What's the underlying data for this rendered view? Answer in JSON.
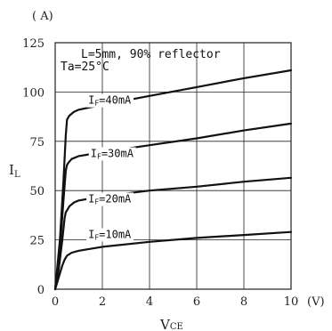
{
  "chart_data": {
    "type": "line",
    "title": "",
    "xlabel_main": "V",
    "xlabel_sub": "CE",
    "ylabel_main": "I",
    "ylabel_sub": "L",
    "x_unit": "(V)",
    "y_unit": "( A)",
    "xlim": [
      0,
      10
    ],
    "ylim": [
      0,
      125
    ],
    "x_ticks": [
      "0",
      "2",
      "4",
      "6",
      "8",
      "10"
    ],
    "y_ticks": [
      "0",
      "25",
      "50",
      "75",
      "100",
      "125"
    ],
    "x_tick_values": [
      0,
      2,
      4,
      6,
      8,
      10
    ],
    "y_tick_values": [
      0,
      25,
      50,
      75,
      100,
      125
    ],
    "grid": true,
    "annotations": [
      "L=5mm, 90% reflector",
      "Ta=25°C"
    ],
    "series": [
      {
        "name": "IF=10mA",
        "label_main": "I",
        "label_sub": "F",
        "label_rest": "=10mA",
        "label_anchor": [
          1.4,
          26
        ],
        "x": [
          0,
          0.1,
          0.2,
          0.3,
          0.4,
          0.5,
          0.7,
          1.0,
          2.0,
          4.0,
          6.0,
          8.0,
          10.0
        ],
        "y": [
          0,
          4,
          8,
          12,
          15,
          17,
          18.5,
          19.5,
          21.5,
          24,
          26,
          27.5,
          29
        ]
      },
      {
        "name": "IF=20mA",
        "label_main": "I",
        "label_sub": "F",
        "label_rest": "=20mA",
        "label_anchor": [
          1.4,
          44
        ],
        "x": [
          0,
          0.15,
          0.3,
          0.4,
          0.45,
          0.5,
          0.6,
          0.8,
          1.0,
          2.0,
          4.0,
          6.0,
          8.0,
          10.0
        ],
        "y": [
          0,
          10,
          25,
          36,
          39,
          40,
          42,
          44,
          45,
          47,
          50,
          52,
          54.5,
          56.5
        ]
      },
      {
        "name": "IF=30mA",
        "label_main": "I",
        "label_sub": "F",
        "label_rest": "=30mA",
        "label_anchor": [
          1.5,
          67
        ],
        "x": [
          0,
          0.2,
          0.35,
          0.45,
          0.5,
          0.55,
          0.7,
          1.0,
          2.0,
          4.0,
          6.0,
          8.0,
          10.0
        ],
        "y": [
          0,
          20,
          45,
          60,
          63,
          64,
          66,
          67.5,
          69.5,
          73,
          76.5,
          80.5,
          84
        ]
      },
      {
        "name": "IF=40mA",
        "label_main": "I",
        "label_sub": "F",
        "label_rest": "=40mA",
        "label_anchor": [
          1.4,
          94
        ],
        "x": [
          0,
          0.2,
          0.35,
          0.45,
          0.5,
          0.6,
          0.8,
          1.0,
          2.0,
          4.0,
          6.0,
          8.0,
          10.0
        ],
        "y": [
          0,
          25,
          55,
          78,
          86,
          88,
          90,
          91,
          93.5,
          98,
          102.5,
          107,
          111
        ]
      }
    ]
  }
}
